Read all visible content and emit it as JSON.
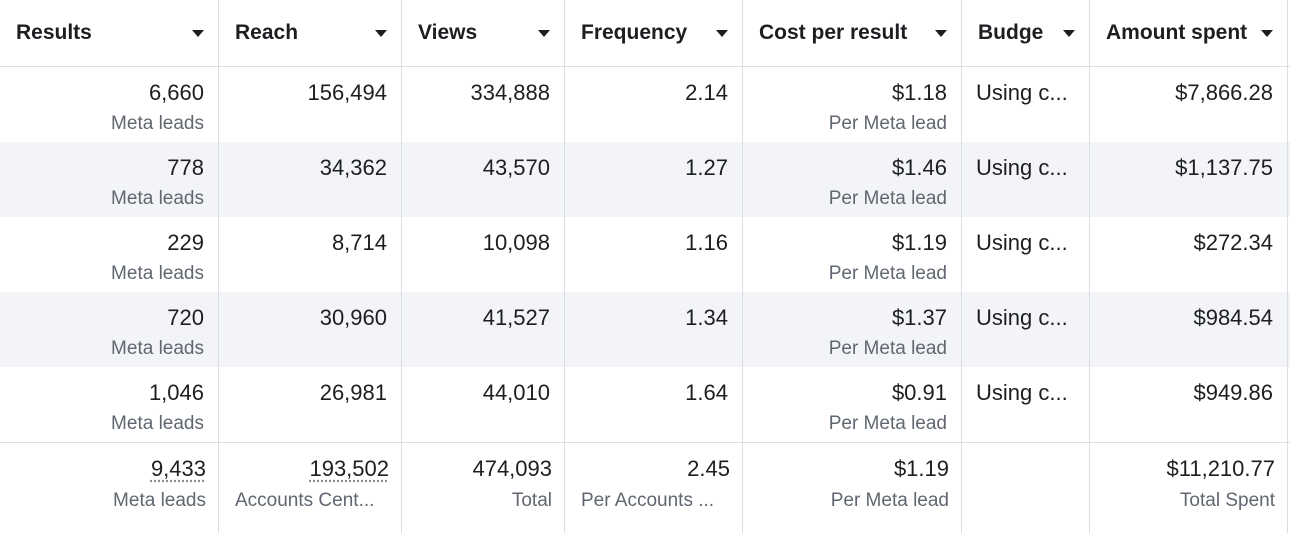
{
  "columns": [
    {
      "key": "results",
      "label": "Results"
    },
    {
      "key": "reach",
      "label": "Reach"
    },
    {
      "key": "views",
      "label": "Views"
    },
    {
      "key": "frequency",
      "label": "Frequency"
    },
    {
      "key": "cost_per_result",
      "label": "Cost per result"
    },
    {
      "key": "budget",
      "label": "Budge"
    },
    {
      "key": "amount_spent",
      "label": "Amount spent"
    }
  ],
  "rows": [
    {
      "results": "6,660",
      "results_sub": "Meta leads",
      "reach": "156,494",
      "views": "334,888",
      "frequency": "2.14",
      "cost": "$1.18",
      "cost_sub": "Per Meta lead",
      "budget": "Using c...",
      "amount": "$7,866.28"
    },
    {
      "results": "778",
      "results_sub": "Meta leads",
      "reach": "34,362",
      "views": "43,570",
      "frequency": "1.27",
      "cost": "$1.46",
      "cost_sub": "Per Meta lead",
      "budget": "Using c...",
      "amount": "$1,137.75"
    },
    {
      "results": "229",
      "results_sub": "Meta leads",
      "reach": "8,714",
      "views": "10,098",
      "frequency": "1.16",
      "cost": "$1.19",
      "cost_sub": "Per Meta lead",
      "budget": "Using c...",
      "amount": "$272.34"
    },
    {
      "results": "720",
      "results_sub": "Meta leads",
      "reach": "30,960",
      "views": "41,527",
      "frequency": "1.34",
      "cost": "$1.37",
      "cost_sub": "Per Meta lead",
      "budget": "Using c...",
      "amount": "$984.54"
    },
    {
      "results": "1,046",
      "results_sub": "Meta leads",
      "reach": "26,981",
      "views": "44,010",
      "frequency": "1.64",
      "cost": "$0.91",
      "cost_sub": "Per Meta lead",
      "budget": "Using c...",
      "amount": "$949.86"
    }
  ],
  "totals": {
    "results": "9,433",
    "results_sub": "Meta leads",
    "reach": "193,502",
    "reach_sub": "Accounts Cent...",
    "views": "474,093",
    "views_sub": "Total",
    "frequency": "2.45",
    "frequency_sub": "Per Accounts ...",
    "cost": "$1.19",
    "cost_sub": "Per Meta lead",
    "amount": "$11,210.77",
    "amount_sub": "Total Spent"
  }
}
